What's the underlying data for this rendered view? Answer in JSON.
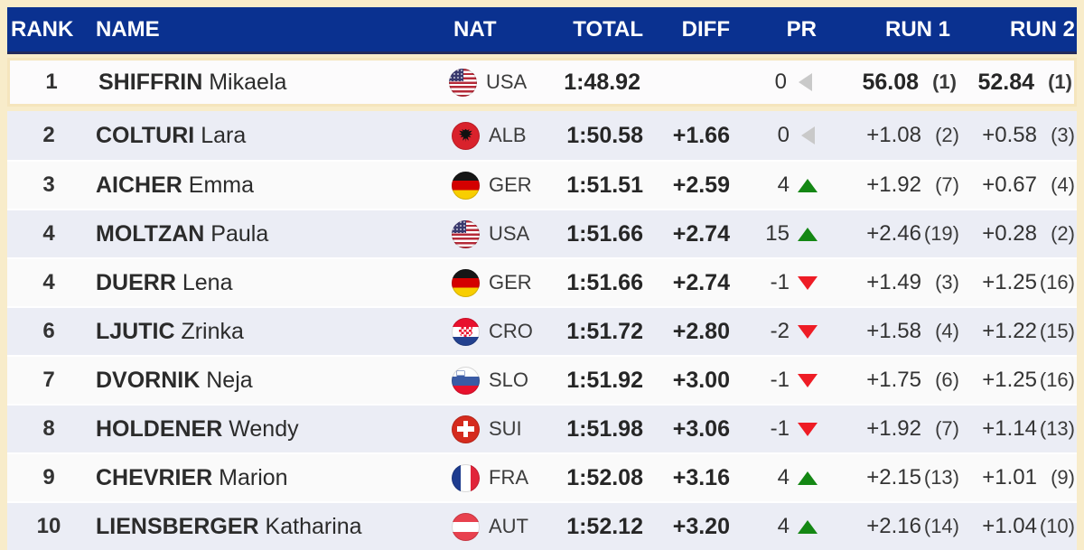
{
  "table": {
    "headers": {
      "rank": "RANK",
      "name": "NAME",
      "nat": "NAT",
      "total": "TOTAL",
      "diff": "DIFF",
      "pr": "PR",
      "run1": "RUN 1",
      "run2": "RUN 2"
    },
    "rows": [
      {
        "rank": "1",
        "surname": "SHIFFRIN",
        "firstname": "Mikaela",
        "nat": "USA",
        "total": "1:48.92",
        "diff": "",
        "pr": "0",
        "pr_dir": "same",
        "run1": "56.08",
        "run1_rank": "(1)",
        "run2": "52.84",
        "run2_rank": "(1)",
        "leader": true
      },
      {
        "rank": "2",
        "surname": "COLTURI",
        "firstname": "Lara",
        "nat": "ALB",
        "total": "1:50.58",
        "diff": "+1.66",
        "pr": "0",
        "pr_dir": "same",
        "run1": "+1.08",
        "run1_rank": "(2)",
        "run2": "+0.58",
        "run2_rank": "(3)",
        "leader": false
      },
      {
        "rank": "3",
        "surname": "AICHER",
        "firstname": "Emma",
        "nat": "GER",
        "total": "1:51.51",
        "diff": "+2.59",
        "pr": "4",
        "pr_dir": "up",
        "run1": "+1.92",
        "run1_rank": "(7)",
        "run2": "+0.67",
        "run2_rank": "(4)",
        "leader": false
      },
      {
        "rank": "4",
        "surname": "MOLTZAN",
        "firstname": "Paula",
        "nat": "USA",
        "total": "1:51.66",
        "diff": "+2.74",
        "pr": "15",
        "pr_dir": "up",
        "run1": "+2.46",
        "run1_rank": "(19)",
        "run2": "+0.28",
        "run2_rank": "(2)",
        "leader": false
      },
      {
        "rank": "4",
        "surname": "DUERR",
        "firstname": "Lena",
        "nat": "GER",
        "total": "1:51.66",
        "diff": "+2.74",
        "pr": "-1",
        "pr_dir": "down",
        "run1": "+1.49",
        "run1_rank": "(3)",
        "run2": "+1.25",
        "run2_rank": "(16)",
        "leader": false
      },
      {
        "rank": "6",
        "surname": "LJUTIC",
        "firstname": "Zrinka",
        "nat": "CRO",
        "total": "1:51.72",
        "diff": "+2.80",
        "pr": "-2",
        "pr_dir": "down",
        "run1": "+1.58",
        "run1_rank": "(4)",
        "run2": "+1.22",
        "run2_rank": "(15)",
        "leader": false
      },
      {
        "rank": "7",
        "surname": "DVORNIK",
        "firstname": "Neja",
        "nat": "SLO",
        "total": "1:51.92",
        "diff": "+3.00",
        "pr": "-1",
        "pr_dir": "down",
        "run1": "+1.75",
        "run1_rank": "(6)",
        "run2": "+1.25",
        "run2_rank": "(16)",
        "leader": false
      },
      {
        "rank": "8",
        "surname": "HOLDENER",
        "firstname": "Wendy",
        "nat": "SUI",
        "total": "1:51.98",
        "diff": "+3.06",
        "pr": "-1",
        "pr_dir": "down",
        "run1": "+1.92",
        "run1_rank": "(7)",
        "run2": "+1.14",
        "run2_rank": "(13)",
        "leader": false
      },
      {
        "rank": "9",
        "surname": "CHEVRIER",
        "firstname": "Marion",
        "nat": "FRA",
        "total": "1:52.08",
        "diff": "+3.16",
        "pr": "4",
        "pr_dir": "up",
        "run1": "+2.15",
        "run1_rank": "(13)",
        "run2": "+1.01",
        "run2_rank": "(9)",
        "leader": false
      },
      {
        "rank": "10",
        "surname": "LIENSBERGER",
        "firstname": "Katharina",
        "nat": "AUT",
        "total": "1:52.12",
        "diff": "+3.20",
        "pr": "4",
        "pr_dir": "up",
        "run1": "+2.16",
        "run1_rank": "(14)",
        "run2": "+1.04",
        "run2_rank": "(10)",
        "leader": false
      }
    ]
  },
  "colors": {
    "header_bg": "#0a3190",
    "frame_cream": "#f8ecca",
    "row_alt": "#ebedf5",
    "up_green": "#148714",
    "down_red": "#ee1c25",
    "neutral_gray": "#c9c9c9"
  }
}
